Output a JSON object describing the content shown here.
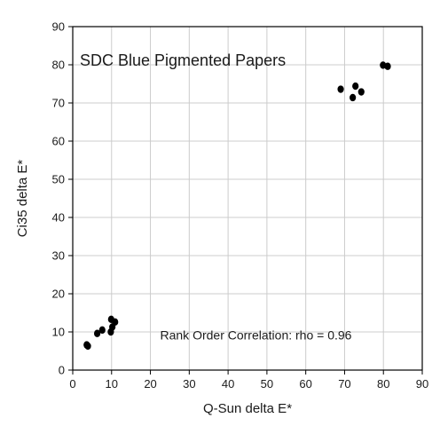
{
  "chart_data": {
    "type": "scatter",
    "title": "SDC Blue Pigmented Papers",
    "xlabel": "Q-Sun delta E*",
    "ylabel": "Ci35 delta E*",
    "xlim": [
      0,
      90
    ],
    "ylim": [
      0,
      90
    ],
    "xticks": [
      0,
      10,
      20,
      30,
      40,
      50,
      60,
      70,
      80,
      90
    ],
    "yticks": [
      0,
      10,
      20,
      30,
      40,
      50,
      60,
      70,
      80,
      90
    ],
    "grid": true,
    "legend": "none",
    "annotation": "Rank Order Correlation: rho = 0.96",
    "marker_color": "#000000",
    "grid_color": "#cccccc",
    "points": [
      {
        "x": 3.6,
        "y": 6.6
      },
      {
        "x": 3.9,
        "y": 6.3
      },
      {
        "x": 6.3,
        "y": 9.6
      },
      {
        "x": 7.6,
        "y": 10.5
      },
      {
        "x": 9.8,
        "y": 10.0
      },
      {
        "x": 10.2,
        "y": 11.3
      },
      {
        "x": 9.9,
        "y": 13.3
      },
      {
        "x": 10.9,
        "y": 12.6
      },
      {
        "x": 69.0,
        "y": 73.6
      },
      {
        "x": 72.1,
        "y": 71.4
      },
      {
        "x": 72.8,
        "y": 74.4
      },
      {
        "x": 74.3,
        "y": 72.9
      },
      {
        "x": 79.9,
        "y": 79.9
      },
      {
        "x": 81.1,
        "y": 79.6
      }
    ]
  }
}
